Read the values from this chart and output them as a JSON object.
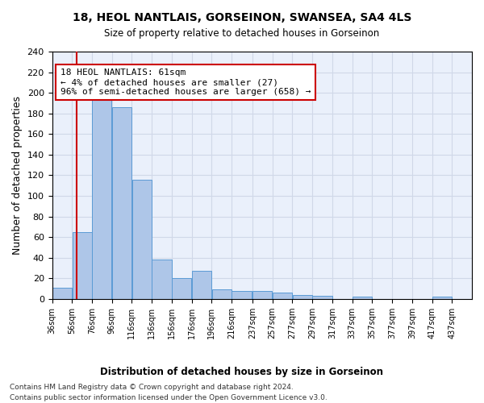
{
  "title": "18, HEOL NANTLAIS, GORSEINON, SWANSEA, SA4 4LS",
  "subtitle": "Size of property relative to detached houses in Gorseinon",
  "xlabel_bottom": "Distribution of detached houses by size in Gorseinon",
  "ylabel": "Number of detached properties",
  "bins": [
    "36sqm",
    "56sqm",
    "76sqm",
    "96sqm",
    "116sqm",
    "136sqm",
    "156sqm",
    "176sqm",
    "196sqm",
    "216sqm",
    "237sqm",
    "257sqm",
    "277sqm",
    "297sqm",
    "317sqm",
    "337sqm",
    "357sqm",
    "377sqm",
    "397sqm",
    "417sqm",
    "437sqm"
  ],
  "bin_edges": [
    36,
    56,
    76,
    96,
    116,
    136,
    156,
    176,
    196,
    216,
    237,
    257,
    277,
    297,
    317,
    337,
    357,
    377,
    397,
    417,
    437
  ],
  "bar_values": [
    11,
    65,
    198,
    186,
    116,
    38,
    20,
    27,
    9,
    8,
    8,
    6,
    4,
    3,
    0,
    2,
    0,
    0,
    0,
    2
  ],
  "bar_color": "#aec6e8",
  "bar_edge_color": "#5b9bd5",
  "grid_color": "#d0d8e8",
  "background_color": "#eaf0fb",
  "property_size": 61,
  "property_line_x": 61,
  "annotation_text": "18 HEOL NANTLAIS: 61sqm\n← 4% of detached houses are smaller (27)\n96% of semi-detached houses are larger (658) →",
  "annotation_box_color": "#ffffff",
  "annotation_box_edge": "#cc0000",
  "vline_color": "#cc0000",
  "footer_line1": "Contains HM Land Registry data © Crown copyright and database right 2024.",
  "footer_line2": "Contains public sector information licensed under the Open Government Licence v3.0.",
  "ylim": [
    0,
    240
  ],
  "yticks": [
    0,
    20,
    40,
    60,
    80,
    100,
    120,
    140,
    160,
    180,
    200,
    220,
    240
  ]
}
